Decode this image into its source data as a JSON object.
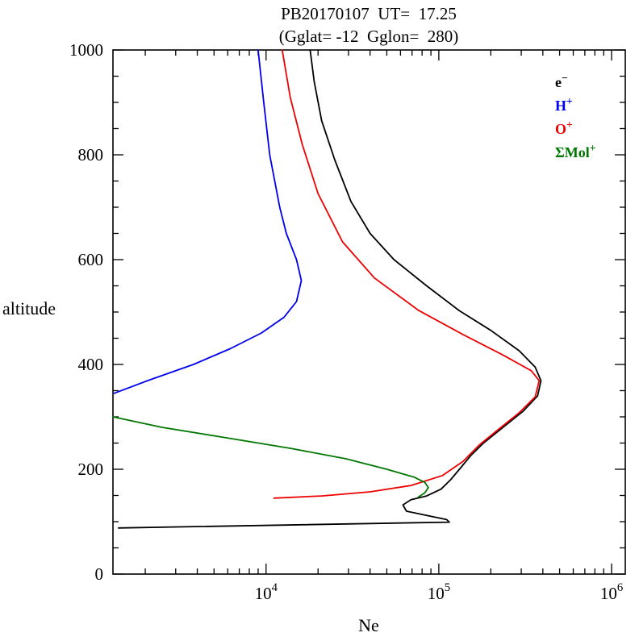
{
  "background": "#ffffff",
  "chart_data": {
    "type": "line",
    "title": "PB20170107  UT=  17.25",
    "subtitle": "(Gglat= -12  Gglon=  280)",
    "xlabel": "Ne",
    "ylabel": "altitude",
    "x_scale": "log",
    "xlim": [
      1300,
      1200000
    ],
    "ylim": [
      0,
      1000
    ],
    "x_ticks": [
      10000,
      100000,
      1000000
    ],
    "y_ticks": [
      0,
      200,
      400,
      600,
      800,
      1000
    ],
    "grid": false,
    "legend_position": "inside-top-right",
    "legend": [
      {
        "name": "electron",
        "base": "e",
        "sup": "−",
        "color": "#000000"
      },
      {
        "name": "hydrogen-ion",
        "base": "H",
        "sup": "+",
        "color": "#0000ee"
      },
      {
        "name": "oxygen-ion",
        "base": "O",
        "sup": "+",
        "color": "#ee0000"
      },
      {
        "name": "molecular-ions",
        "base": "ΣMol",
        "sup": "+",
        "color": "#007700"
      }
    ],
    "series": [
      {
        "name": "electron-density",
        "label": "e−",
        "color": "#000000",
        "points": [
          [
            18000,
            1000
          ],
          [
            19000,
            940
          ],
          [
            21000,
            865
          ],
          [
            25000,
            790
          ],
          [
            31000,
            711
          ],
          [
            40000,
            650
          ],
          [
            55000,
            600
          ],
          [
            85000,
            550
          ],
          [
            131000,
            503
          ],
          [
            200000,
            465
          ],
          [
            292000,
            426
          ],
          [
            361000,
            395
          ],
          [
            390000,
            369
          ],
          [
            373000,
            340
          ],
          [
            308000,
            311
          ],
          [
            235000,
            280
          ],
          [
            180000,
            249
          ],
          [
            153000,
            226
          ],
          [
            134000,
            203
          ],
          [
            117000,
            180
          ],
          [
            103000,
            162
          ],
          [
            85000,
            149
          ],
          [
            69000,
            142
          ],
          [
            62000,
            132
          ],
          [
            65000,
            120
          ],
          [
            85000,
            112
          ],
          [
            111000,
            104
          ],
          [
            115000,
            99
          ],
          [
            1400,
            88
          ]
        ]
      },
      {
        "name": "hydrogen-ion-density",
        "label": "H+",
        "color": "#0000ee",
        "points": [
          [
            9000,
            1000
          ],
          [
            9700,
            900
          ],
          [
            10500,
            800
          ],
          [
            12000,
            700
          ],
          [
            13100,
            650
          ],
          [
            15000,
            600
          ],
          [
            16000,
            560
          ],
          [
            15000,
            520
          ],
          [
            12700,
            490
          ],
          [
            9400,
            460
          ],
          [
            6200,
            430
          ],
          [
            3800,
            400
          ],
          [
            2100,
            370
          ],
          [
            1320,
            345
          ]
        ]
      },
      {
        "name": "oxygen-ion-density",
        "label": "O+",
        "color": "#ee0000",
        "points": [
          [
            12400,
            1000
          ],
          [
            13800,
            910
          ],
          [
            16200,
            820
          ],
          [
            20000,
            726
          ],
          [
            27700,
            634
          ],
          [
            42400,
            565
          ],
          [
            76500,
            503
          ],
          [
            138000,
            457
          ],
          [
            235000,
            418
          ],
          [
            343000,
            388
          ],
          [
            381000,
            369
          ],
          [
            361000,
            338
          ],
          [
            292000,
            308
          ],
          [
            223000,
            277
          ],
          [
            171000,
            246
          ],
          [
            138000,
            215
          ],
          [
            105000,
            188
          ],
          [
            69000,
            169
          ],
          [
            40000,
            157
          ],
          [
            21000,
            149
          ],
          [
            11100,
            145
          ]
        ]
      },
      {
        "name": "molecular-ion-density",
        "label": "ΣMol+",
        "color": "#007700",
        "points": [
          [
            1300,
            300
          ],
          [
            2500,
            280
          ],
          [
            5900,
            260
          ],
          [
            13800,
            240
          ],
          [
            29000,
            220
          ],
          [
            50000,
            200
          ],
          [
            72000,
            185
          ],
          [
            83000,
            175
          ],
          [
            87000,
            165
          ],
          [
            83000,
            155
          ],
          [
            76000,
            147
          ]
        ]
      }
    ]
  }
}
